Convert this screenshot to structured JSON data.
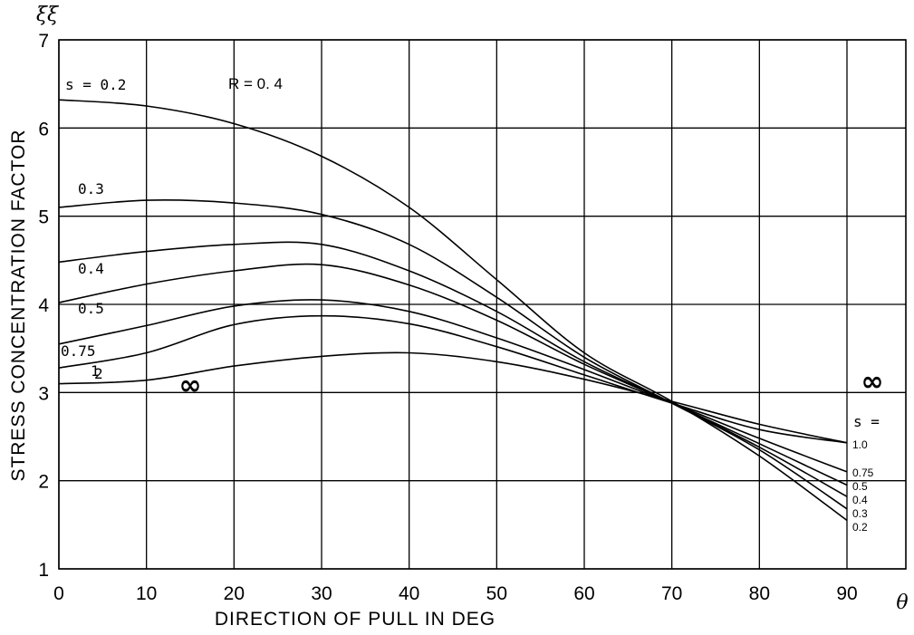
{
  "chart_data": {
    "type": "line",
    "title": "",
    "ylabel": "STRESS CONCENTRATION FACTOR",
    "xlabel": "DIRECTION OF PULL IN DEG",
    "ylabel_symbol": "ξξ",
    "xlabel_symbol": "θ",
    "parameter_label": "R = 0. 4",
    "right_s_header": "s =",
    "xlim": [
      0,
      90
    ],
    "ylim": [
      1,
      7
    ],
    "xticks": [
      0,
      10,
      20,
      30,
      40,
      50,
      60,
      70,
      80,
      90
    ],
    "yticks": [
      1,
      2,
      3,
      4,
      5,
      6,
      7
    ],
    "grid": true,
    "infinity_left": "∞",
    "infinity_right": "∞",
    "series": [
      {
        "id": "s0.2",
        "left_label": "s = 0.2",
        "right_label": "0.2",
        "x": [
          0,
          10,
          20,
          30,
          40,
          50,
          60,
          70,
          80,
          90
        ],
        "y": [
          6.32,
          6.25,
          6.05,
          5.68,
          5.1,
          4.28,
          3.45,
          2.9,
          2.28,
          1.55
        ]
      },
      {
        "id": "s0.3",
        "left_label": "0.3",
        "right_label": "0.3",
        "x": [
          0,
          10,
          20,
          30,
          40,
          50,
          60,
          70,
          80,
          90
        ],
        "y": [
          5.1,
          5.18,
          5.15,
          5.02,
          4.68,
          4.08,
          3.4,
          2.88,
          2.35,
          1.68
        ]
      },
      {
        "id": "s0.4",
        "left_label": "0.4",
        "right_label": "0.4",
        "x": [
          0,
          10,
          20,
          30,
          40,
          50,
          60,
          70,
          80,
          90
        ],
        "y": [
          4.48,
          4.6,
          4.68,
          4.68,
          4.38,
          3.92,
          3.35,
          2.88,
          2.38,
          1.82
        ]
      },
      {
        "id": "s0.5",
        "left_label": "0.5",
        "right_label": "0.5",
        "x": [
          0,
          10,
          20,
          30,
          40,
          50,
          60,
          70,
          80,
          90
        ],
        "y": [
          4.02,
          4.23,
          4.38,
          4.45,
          4.22,
          3.82,
          3.32,
          2.88,
          2.42,
          1.95
        ]
      },
      {
        "id": "s0.75",
        "left_label": "0.75",
        "right_label": "0.75",
        "x": [
          0,
          10,
          20,
          30,
          40,
          50,
          60,
          70,
          80,
          90
        ],
        "y": [
          3.55,
          3.76,
          3.98,
          4.05,
          3.92,
          3.62,
          3.26,
          2.88,
          2.48,
          2.1
        ]
      },
      {
        "id": "s1",
        "left_label": "1",
        "right_label": "1.0",
        "x": [
          0,
          10,
          20,
          30,
          40,
          50,
          60,
          70,
          80,
          90
        ],
        "y": [
          3.28,
          3.45,
          3.77,
          3.87,
          3.78,
          3.52,
          3.2,
          2.88,
          2.58,
          2.43
        ]
      },
      {
        "id": "s2",
        "left_label": "2",
        "right_label": "",
        "x": [
          0,
          10,
          20,
          30,
          40,
          50,
          60,
          70,
          80,
          90
        ],
        "y": [
          3.1,
          3.14,
          3.3,
          3.41,
          3.45,
          3.35,
          3.15,
          2.9,
          2.64,
          2.43
        ]
      }
    ]
  }
}
